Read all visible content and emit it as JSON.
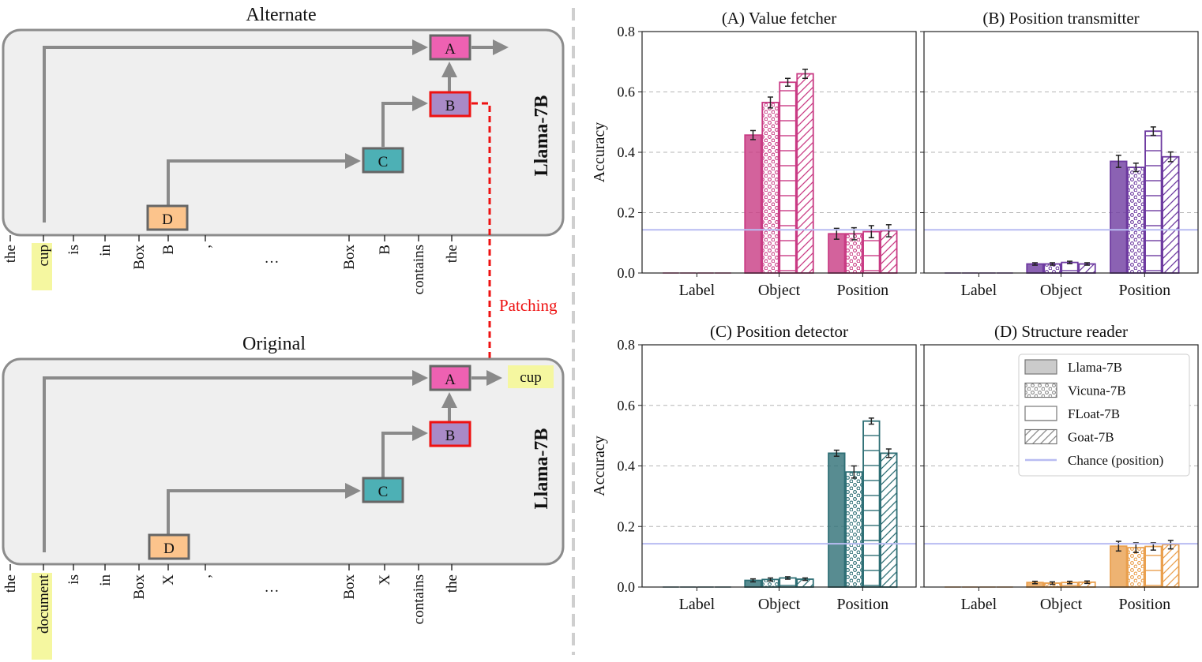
{
  "diagram": {
    "top": {
      "title": "Alternate",
      "model": "Llama-7B",
      "nodes": [
        "A",
        "B",
        "C",
        "D"
      ],
      "tokens": [
        "the",
        "cup",
        "is",
        "in",
        "Box",
        "B",
        ",",
        "…",
        "Box",
        "B",
        "contains",
        "the"
      ],
      "highlight_index": 1
    },
    "bottom": {
      "title": "Original",
      "model": "Llama-7B",
      "nodes": [
        "A",
        "B",
        "C",
        "D"
      ],
      "tokens": [
        "the",
        "document",
        "is",
        "in",
        "Box",
        "X",
        ",",
        "…",
        "Box",
        "X",
        "contains",
        "the"
      ],
      "highlight_index": 1,
      "output": "cup"
    },
    "patch_label": "Patching"
  },
  "colors": {
    "A": "#ee61b2",
    "B": "#a98ac7",
    "C": "#4db0b5",
    "D": "#fcc48c",
    "arrow": "#8a8a8a",
    "patch": "#ee1111",
    "highlight": "#f5f7a0",
    "panel": "#efefef",
    "chance": "#b8bcf2"
  },
  "chart_data": [
    {
      "type": "bar",
      "title": "(A) Value fetcher",
      "color": "#c93b84",
      "ylabel": "Accuracy",
      "categories": [
        "Label",
        "Object",
        "Position"
      ],
      "ylim": [
        0,
        0.8
      ],
      "yticks": [
        "0.0",
        "0.2",
        "0.4",
        "0.6",
        "0.8"
      ],
      "series": [
        {
          "name": "Llama-7B",
          "values": [
            0.0,
            0.457,
            0.13
          ],
          "err": [
            0,
            0.015,
            0.018
          ]
        },
        {
          "name": "Vicuna-7B",
          "values": [
            0.0,
            0.565,
            0.13
          ],
          "err": [
            0,
            0.018,
            0.02
          ]
        },
        {
          "name": "FLoat-7B",
          "values": [
            0.0,
            0.632,
            0.137
          ],
          "err": [
            0,
            0.013,
            0.02
          ]
        },
        {
          "name": "Goat-7B",
          "values": [
            0.0,
            0.66,
            0.14
          ],
          "err": [
            0,
            0.015,
            0.02
          ]
        }
      ],
      "chance": 0.143
    },
    {
      "type": "bar",
      "title": "(B) Position transmitter",
      "color": "#6d3aa0",
      "ylabel": "",
      "categories": [
        "Label",
        "Object",
        "Position"
      ],
      "ylim": [
        0,
        0.8
      ],
      "yticks": [],
      "series": [
        {
          "name": "Llama-7B",
          "values": [
            0.0,
            0.03,
            0.37
          ],
          "err": [
            0,
            0.004,
            0.02
          ]
        },
        {
          "name": "Vicuna-7B",
          "values": [
            0.0,
            0.03,
            0.35
          ],
          "err": [
            0,
            0.004,
            0.014
          ]
        },
        {
          "name": "FLoat-7B",
          "values": [
            0.0,
            0.035,
            0.47
          ],
          "err": [
            0,
            0.004,
            0.014
          ]
        },
        {
          "name": "Goat-7B",
          "values": [
            0.0,
            0.03,
            0.385
          ],
          "err": [
            0,
            0.004,
            0.016
          ]
        }
      ],
      "chance": 0.143
    },
    {
      "type": "bar",
      "title": "(C) Position detector",
      "color": "#2e6f75",
      "ylabel": "Accuracy",
      "categories": [
        "Label",
        "Object",
        "Position"
      ],
      "ylim": [
        0,
        0.8
      ],
      "yticks": [
        "0.0",
        "0.2",
        "0.4",
        "0.6",
        "0.8"
      ],
      "series": [
        {
          "name": "Llama-7B",
          "values": [
            0.0,
            0.022,
            0.442
          ],
          "err": [
            0,
            0.005,
            0.01
          ]
        },
        {
          "name": "Vicuna-7B",
          "values": [
            0.0,
            0.025,
            0.38
          ],
          "err": [
            0,
            0.005,
            0.02
          ]
        },
        {
          "name": "FLoat-7B",
          "values": [
            0.0,
            0.03,
            0.548
          ],
          "err": [
            0,
            0.004,
            0.01
          ]
        },
        {
          "name": "Goat-7B",
          "values": [
            0.0,
            0.026,
            0.442
          ],
          "err": [
            0,
            0.004,
            0.014
          ]
        }
      ],
      "chance": 0.143
    },
    {
      "type": "bar",
      "title": "(D) Structure reader",
      "color": "#eaa04e",
      "ylabel": "",
      "categories": [
        "Label",
        "Object",
        "Position"
      ],
      "ylim": [
        0,
        0.8
      ],
      "yticks": [],
      "series": [
        {
          "name": "Llama-7B",
          "values": [
            0.0,
            0.015,
            0.135
          ],
          "err": [
            0,
            0.004,
            0.016
          ]
        },
        {
          "name": "Vicuna-7B",
          "values": [
            0.0,
            0.013,
            0.13
          ],
          "err": [
            0,
            0.004,
            0.016
          ]
        },
        {
          "name": "FLoat-7B",
          "values": [
            0.0,
            0.015,
            0.134
          ],
          "err": [
            0,
            0.004,
            0.012
          ]
        },
        {
          "name": "Goat-7B",
          "values": [
            0.0,
            0.016,
            0.14
          ],
          "err": [
            0,
            0.004,
            0.014
          ]
        }
      ],
      "chance": 0.143,
      "legend": [
        "Llama-7B",
        "Vicuna-7B",
        "FLoat-7B",
        "Goat-7B",
        "Chance (position)"
      ]
    }
  ]
}
